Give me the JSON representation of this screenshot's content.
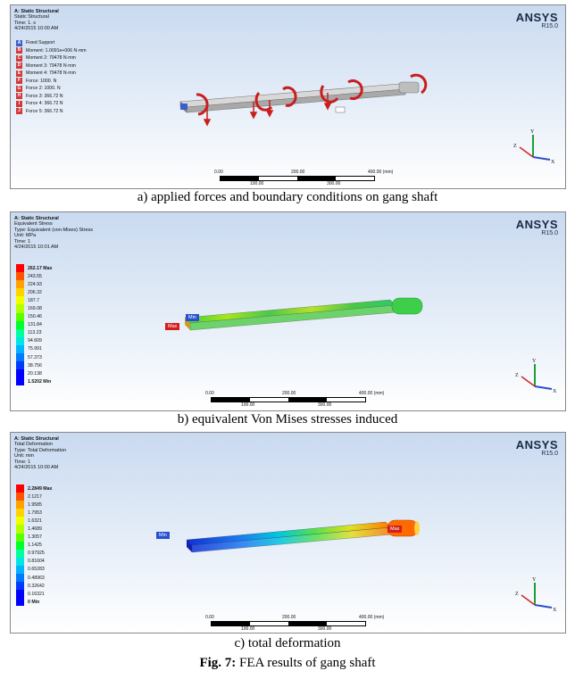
{
  "brand": {
    "name": "ANSYS",
    "version": "R15.0"
  },
  "panel_a": {
    "title": "A: Static Structural",
    "lines": [
      "Static Structural",
      "Time: 1. s",
      "4/24/2015 10:00 AM"
    ],
    "legend": [
      {
        "key": "A",
        "label": "Fixed Support",
        "color": "#3a5fcd"
      },
      {
        "key": "B",
        "label": "Moment: 1.0091e+006 N·mm",
        "color": "#d23a3a"
      },
      {
        "key": "C",
        "label": "Moment 2: 79478 N·mm",
        "color": "#d23a3a"
      },
      {
        "key": "D",
        "label": "Moment 3: 79478 N·mm",
        "color": "#d23a3a"
      },
      {
        "key": "E",
        "label": "Moment 4: 79478 N·mm",
        "color": "#d23a3a"
      },
      {
        "key": "F",
        "label": "Force: 1000. N",
        "color": "#d23a3a"
      },
      {
        "key": "G",
        "label": "Force 2: 1000. N",
        "color": "#d23a3a"
      },
      {
        "key": "H",
        "label": "Force 3: 366.72 N",
        "color": "#d23a3a"
      },
      {
        "key": "I",
        "label": "Force 4: 366.72 N",
        "color": "#d23a3a"
      },
      {
        "key": "J",
        "label": "Force 5: 366.72 N",
        "color": "#d23a3a"
      }
    ],
    "scale": [
      "0.00",
      "200.00",
      "400.00 (mm)",
      "100.00",
      "300.00"
    ],
    "caption": "a) applied forces and boundary conditions on gang shaft"
  },
  "panel_b": {
    "title": "A: Static Structural",
    "lines": [
      "Equivalent Stress",
      "Type: Equivalent (von-Mises) Stress",
      "Unit: MPa",
      "Time: 1",
      "4/24/2015 10:01 AM"
    ],
    "max_label": "262.17 Max",
    "values": [
      "243.55",
      "224.93",
      "206.32",
      "187.7",
      "169.08",
      "150.46",
      "131.84",
      "113.23",
      "94.609",
      "75.991",
      "57.373",
      "38.756",
      "20.138"
    ],
    "min_label": "1.5202 Min",
    "tag_min": "Min",
    "tag_max": "Max",
    "scale": [
      "0.00",
      "200.00",
      "400.00 (mm)",
      "100.00",
      "300.00"
    ],
    "caption": "b) equivalent Von Mises stresses induced"
  },
  "panel_c": {
    "title": "A: Static Structural",
    "lines": [
      "Total Deformation",
      "Type: Total Deformation",
      "Unit: mm",
      "Time: 1",
      "4/24/2015 10:00 AM"
    ],
    "max_label": "2.2849 Max",
    "values": [
      "2.1217",
      "1.9585",
      "1.7953",
      "1.6321",
      "1.4689",
      "1.3057",
      "1.1425",
      "0.97925",
      "0.81604",
      "0.65283",
      "0.48963",
      "0.32642",
      "0.16321"
    ],
    "min_label": "0 Min",
    "tag_min": "Min",
    "tag_max": "Max",
    "scale": [
      "0.00",
      "200.00",
      "400.00 (mm)",
      "100.00",
      "300.00"
    ],
    "caption": "c) total deformation"
  },
  "figure_caption": {
    "label": "Fig. 7:",
    "text": " FEA results of gang shaft"
  },
  "colormap": [
    "#ff0000",
    "#ff5400",
    "#ffa200",
    "#ffd200",
    "#f0ff00",
    "#b4ff00",
    "#5aff00",
    "#00ff2a",
    "#00ff9e",
    "#00e6e6",
    "#00b4ff",
    "#0078ff",
    "#003cff",
    "#0000ff"
  ]
}
